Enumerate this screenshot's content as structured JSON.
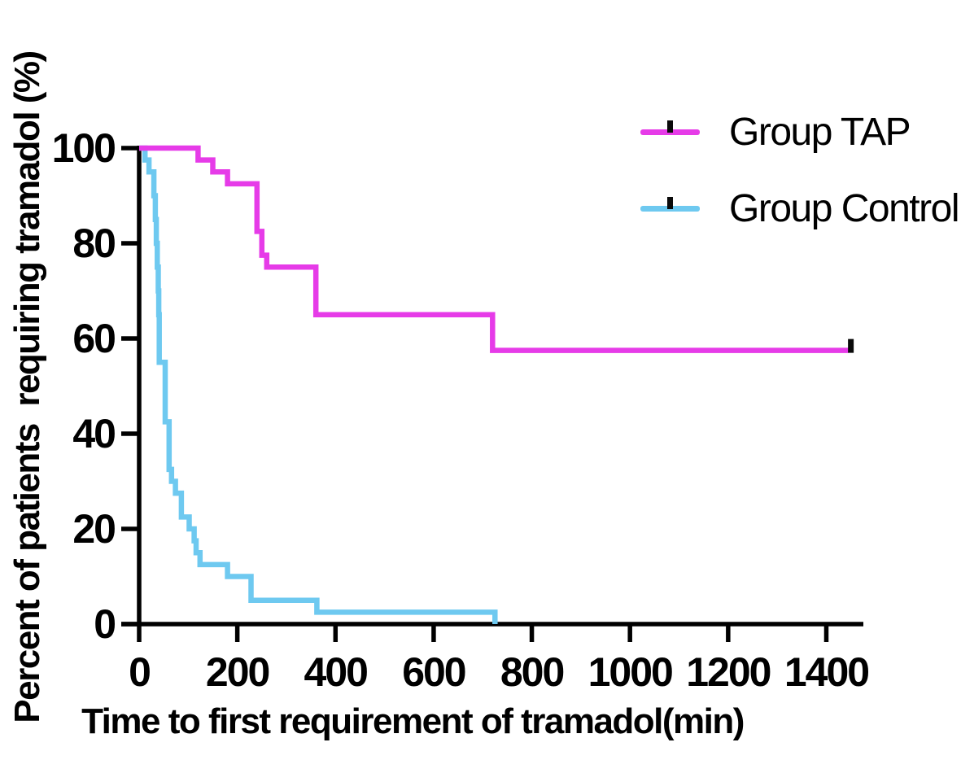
{
  "figure": {
    "background": "#FFFFFF",
    "axis_color": "#000000",
    "text_color": "#000000"
  },
  "legend": {
    "position": "top-right",
    "items": [
      {
        "label": "Group TAP",
        "color": "#E63BE8",
        "marker": "censor-tick"
      },
      {
        "label": "Group Control",
        "color": "#6EC9F0",
        "marker": "censor-tick"
      }
    ]
  },
  "chart_data": {
    "type": "line",
    "subtype": "kaplan-meier-step",
    "title": "",
    "xlabel": "Time to first requirement of tramadol(min)",
    "ylabel": "Percent of patients  requiring tramadol (%)",
    "xlim": [
      0,
      1475
    ],
    "ylim": [
      0,
      100
    ],
    "x_ticks": [
      0,
      200,
      400,
      600,
      800,
      1000,
      1200,
      1400
    ],
    "y_ticks": [
      100,
      80,
      60,
      40,
      20,
      0
    ],
    "grid": false,
    "legend_position": "top-right",
    "series": [
      {
        "name": "Group TAP",
        "color": "#E63BE8",
        "steps": [
          [
            0,
            100
          ],
          [
            120,
            97.5
          ],
          [
            150,
            95
          ],
          [
            180,
            92.5
          ],
          [
            240,
            82.5
          ],
          [
            250,
            77.5
          ],
          [
            260,
            75
          ],
          [
            360,
            65
          ],
          [
            720,
            57.5
          ]
        ],
        "end_time": 1445,
        "censor_marks": [
          [
            1445,
            57.5
          ]
        ]
      },
      {
        "name": "Group Control",
        "color": "#6EC9F0",
        "steps": [
          [
            0,
            100
          ],
          [
            12,
            97.5
          ],
          [
            20,
            95
          ],
          [
            30,
            90
          ],
          [
            33,
            85
          ],
          [
            35,
            80
          ],
          [
            37,
            75
          ],
          [
            39,
            70
          ],
          [
            40,
            65
          ],
          [
            41,
            55
          ],
          [
            53,
            42.5
          ],
          [
            61,
            32.5
          ],
          [
            66,
            30
          ],
          [
            74,
            27.5
          ],
          [
            86,
            22.5
          ],
          [
            102,
            20
          ],
          [
            112,
            17.5
          ],
          [
            116,
            15
          ],
          [
            124,
            12.5
          ],
          [
            180,
            10
          ],
          [
            228,
            5
          ],
          [
            362,
            2.5
          ],
          [
            725,
            0
          ]
        ],
        "end_time": 725,
        "censor_marks": []
      }
    ]
  }
}
